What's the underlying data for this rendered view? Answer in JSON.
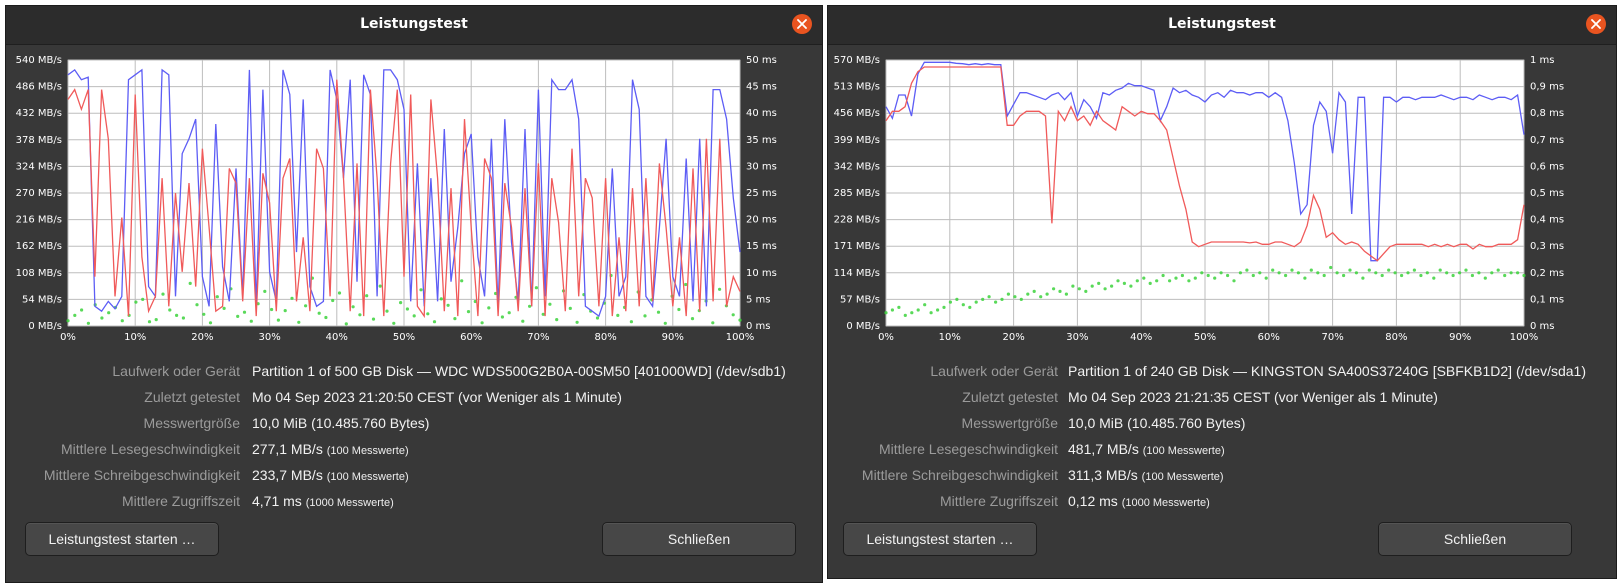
{
  "colors": {
    "read": "#5d5df5",
    "write": "#f05a5a",
    "access": "#3cd23c",
    "accent": "#e95420"
  },
  "dialogs": [
    {
      "title": "Leistungstest",
      "chart_data": {
        "type": "line",
        "x_ticks": [
          "0%",
          "10%",
          "20%",
          "30%",
          "40%",
          "50%",
          "60%",
          "70%",
          "80%",
          "90%",
          "100%"
        ],
        "y_left_ticks": [
          "0 MB/s",
          "54 MB/s",
          "108 MB/s",
          "162 MB/s",
          "216 MB/s",
          "270 MB/s",
          "324 MB/s",
          "378 MB/s",
          "432 MB/s",
          "486 MB/s",
          "540 MB/s"
        ],
        "y_right_ticks": [
          "0 ms",
          "5 ms",
          "10 ms",
          "15 ms",
          "20 ms",
          "25 ms",
          "30 ms",
          "35 ms",
          "40 ms",
          "45 ms",
          "50 ms"
        ],
        "y_max_mbs": 540,
        "y_max_ms": 50,
        "series": [
          {
            "values": [
              510,
              520,
              500,
              505,
              40,
              30,
              50,
              35,
              60,
              500,
              510,
              520,
              80,
              60,
              520,
              510,
              60,
              350,
              380,
              420,
              100,
              40,
              410,
              120,
              50,
              320,
              60,
              520,
              40,
              480,
              110,
              50,
              520,
              470,
              150,
              460,
              80,
              40,
              50,
              520,
              460,
              300,
              500,
              90,
              510,
              470,
              60,
              520,
              520,
              500,
              440,
              50,
              330,
              40,
              300,
              50,
              400,
              90,
              200,
              350,
              390,
              140,
              60,
              380,
              40,
              420,
              170,
              50,
              400,
              40,
              480,
              60,
              500,
              480,
              480,
              500,
              420,
              40,
              30,
              20,
              60,
              320,
              60,
              100,
              500,
              440,
              60,
              40,
              200,
              380,
              100,
              60,
              340,
              50,
              380,
              40,
              480,
              480,
              420,
              260,
              150
            ]
          },
          {
            "values": [
              460,
              480,
              440,
              480,
              100,
              480,
              380,
              60,
              220,
              20,
              470,
              140,
              30,
              60,
              300,
              40,
              270,
              110,
              290,
              80,
              360,
              200,
              30,
              40,
              320,
              290,
              50,
              300,
              20,
              310,
              250,
              30,
              300,
              340,
              50,
              180,
              30,
              360,
              320,
              60,
              500,
              300,
              30,
              330,
              20,
              480,
              300,
              20,
              330,
              480,
              100,
              470,
              40,
              20,
              460,
              300,
              30,
              280,
              20,
              420,
              200,
              20,
              340,
              300,
              20,
              290,
              200,
              30,
              280,
              40,
              330,
              20,
              300,
              210,
              30,
              360,
              60,
              300,
              260,
              40,
              300,
              20,
              180,
              30,
              280,
              40,
              300,
              50,
              330,
              200,
              40,
              180,
              20,
              320,
              30,
              380,
              50,
              380,
              40,
              100,
              70
            ]
          }
        ],
        "access_ms": [
          1,
          2,
          3,
          0.5,
          4,
          1.5,
          2.5,
          3.5,
          1,
          2,
          4.5,
          5,
          0.8,
          1.2,
          6,
          3,
          2,
          1.5,
          8,
          4,
          2.2,
          0.6,
          5.5,
          3.3,
          7,
          1.8,
          2.6,
          0.9,
          4.2,
          6.5,
          3.1,
          1.1,
          2.9,
          5.2,
          0.7,
          3.8,
          9,
          2.4,
          1.6,
          4.8,
          6.2,
          0.4,
          3.6,
          2.1,
          5.7,
          1.3,
          7.5,
          2.8,
          0.5,
          4.4,
          3.2,
          1.9,
          6.8,
          2.3,
          0.8,
          5.1,
          3.9,
          1.4,
          8.5,
          2.7,
          4.6,
          0.6,
          3.4,
          6.1,
          1.7,
          2.5,
          5.4,
          0.9,
          3.7,
          7.2,
          2.2,
          4.1,
          1.2,
          6.6,
          3.3,
          0.7,
          5.9,
          2.8,
          1.5,
          4.3,
          9.5,
          2,
          3.5,
          0.8,
          6.4,
          1.9,
          4.9,
          2.6,
          0.5,
          5.6,
          3.1,
          7.8,
          1.4,
          2.9,
          4.7,
          0.6,
          6.9,
          3.8,
          2.1,
          1.1
        ]
      },
      "fields": [
        {
          "label": "Laufwerk oder Gerät",
          "value": "Partition 1 of 500 GB Disk — WDC  WDS500G2B0A-00SM50 [401000WD] (/dev/sdb1)",
          "note": ""
        },
        {
          "label": "Zuletzt getestet",
          "value": "Mo 04 Sep 2023 21:20:50 CEST (vor Weniger als 1 Minute)",
          "note": ""
        },
        {
          "label": "Messwertgröße",
          "value": "10,0 MiB (10.485.760 Bytes)",
          "note": ""
        },
        {
          "label": "Mittlere Lesegeschwindigkeit",
          "value": "277,1 MB/s ",
          "note": "(100 Messwerte)"
        },
        {
          "label": "Mittlere Schreibgeschwindigkeit",
          "value": "233,7 MB/s ",
          "note": "(100 Messwerte)"
        },
        {
          "label": "Mittlere Zugriffszeit",
          "value": "4,71 ms ",
          "note": "(1000 Messwerte)"
        }
      ],
      "start_button": "Leistungstest starten …",
      "close_button": "Schließen"
    },
    {
      "title": "Leistungstest",
      "chart_data": {
        "type": "line",
        "x_ticks": [
          "0%",
          "10%",
          "20%",
          "30%",
          "40%",
          "50%",
          "60%",
          "70%",
          "80%",
          "90%",
          "100%"
        ],
        "y_left_ticks": [
          "0 MB/s",
          "57 MB/s",
          "114 MB/s",
          "171 MB/s",
          "228 MB/s",
          "285 MB/s",
          "342 MB/s",
          "399 MB/s",
          "456 MB/s",
          "513 MB/s",
          "570 MB/s"
        ],
        "y_right_ticks": [
          "0 ms",
          "0,1 ms",
          "0,2 ms",
          "0,3 ms",
          "0,4 ms",
          "0,5 ms",
          "0,6 ms",
          "0,7 ms",
          "0,8 ms",
          "0,9 ms",
          "1 ms"
        ],
        "y_max_mbs": 570,
        "y_max_ms": 1,
        "series": [
          {
            "values": [
              470,
              445,
              495,
              495,
              450,
              540,
              565,
              565,
              565,
              565,
              565,
              563,
              562,
              560,
              562,
              560,
              562,
              560,
              560,
              450,
              475,
              500,
              500,
              495,
              490,
              485,
              495,
              500,
              485,
              500,
              450,
              485,
              470,
              445,
              500,
              495,
              505,
              510,
              520,
              515,
              515,
              510,
              505,
              440,
              470,
              510,
              500,
              505,
              495,
              490,
              480,
              495,
              500,
              490,
              505,
              500,
              500,
              495,
              500,
              500,
              490,
              500,
              490,
              440,
              350,
              240,
              260,
              430,
              480,
              460,
              370,
              500,
              480,
              240,
              490,
              490,
              140,
              140,
              490,
              490,
              480,
              490,
              490,
              485,
              490,
              490,
              490,
              495,
              490,
              485,
              490,
              490,
              485,
              495,
              490,
              485,
              490,
              490,
              485,
              495,
              410
            ]
          },
          {
            "values": [
              440,
              460,
              460,
              470,
              520,
              545,
              555,
              555,
              555,
              555,
              555,
              555,
              555,
              555,
              555,
              555,
              555,
              555,
              555,
              430,
              430,
              450,
              460,
              460,
              460,
              450,
              220,
              460,
              440,
              470,
              440,
              450,
              430,
              460,
              440,
              430,
              420,
              470,
              460,
              450,
              460,
              455,
              455,
              440,
              420,
              360,
              300,
              250,
              180,
              170,
              175,
              180,
              180,
              180,
              180,
              180,
              180,
              178,
              180,
              175,
              175,
              180,
              180,
              175,
              170,
              180,
              215,
              280,
              250,
              190,
              200,
              185,
              175,
              180,
              175,
              160,
              150,
              140,
              155,
              170,
              175,
              175,
              175,
              175,
              175,
              170,
              175,
              170,
              175,
              170,
              175,
              175,
              165,
              175,
              170,
              170,
              175,
              175,
              175,
              185,
              260
            ]
          }
        ],
        "access_ms": [
          0.05,
          0.06,
          0.07,
          0.04,
          0.05,
          0.06,
          0.08,
          0.05,
          0.06,
          0.07,
          0.09,
          0.1,
          0.08,
          0.07,
          0.09,
          0.1,
          0.11,
          0.09,
          0.1,
          0.12,
          0.11,
          0.1,
          0.12,
          0.13,
          0.11,
          0.12,
          0.14,
          0.13,
          0.12,
          0.15,
          0.14,
          0.13,
          0.15,
          0.16,
          0.14,
          0.15,
          0.17,
          0.16,
          0.15,
          0.17,
          0.18,
          0.16,
          0.17,
          0.19,
          0.17,
          0.18,
          0.19,
          0.17,
          0.18,
          0.2,
          0.19,
          0.18,
          0.2,
          0.19,
          0.17,
          0.2,
          0.21,
          0.19,
          0.2,
          0.18,
          0.21,
          0.2,
          0.19,
          0.21,
          0.2,
          0.18,
          0.21,
          0.2,
          0.19,
          0.22,
          0.2,
          0.19,
          0.21,
          0.2,
          0.18,
          0.21,
          0.2,
          0.19,
          0.21,
          0.2,
          0.19,
          0.2,
          0.21,
          0.19,
          0.2,
          0.18,
          0.21,
          0.2,
          0.19,
          0.2,
          0.21,
          0.19,
          0.2,
          0.18,
          0.2,
          0.21,
          0.19,
          0.2,
          0.2,
          0.19
        ]
      },
      "fields": [
        {
          "label": "Laufwerk oder Gerät",
          "value": "Partition 1 of 240 GB Disk — KINGSTON SA400S37240G [SBFKB1D2] (/dev/sda1)",
          "note": ""
        },
        {
          "label": "Zuletzt getestet",
          "value": "Mo 04 Sep 2023 21:21:35 CEST (vor Weniger als 1 Minute)",
          "note": ""
        },
        {
          "label": "Messwertgröße",
          "value": "10,0 MiB (10.485.760 Bytes)",
          "note": ""
        },
        {
          "label": "Mittlere Lesegeschwindigkeit",
          "value": "481,7 MB/s ",
          "note": "(100 Messwerte)"
        },
        {
          "label": "Mittlere Schreibgeschwindigkeit",
          "value": "311,3 MB/s ",
          "note": "(100 Messwerte)"
        },
        {
          "label": "Mittlere Zugriffszeit",
          "value": "0,12 ms ",
          "note": "(1000 Messwerte)"
        }
      ],
      "start_button": "Leistungstest starten …",
      "close_button": "Schließen"
    }
  ]
}
